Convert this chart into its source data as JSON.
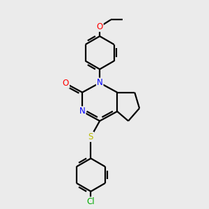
{
  "background_color": "#ebebeb",
  "bond_color": "#000000",
  "bond_width": 1.6,
  "atom_colors": {
    "N": "#0000ff",
    "O": "#ff0000",
    "S": "#bbbb00",
    "Cl": "#00aa00",
    "C": "#000000"
  },
  "font_size_atom": 8.5,
  "fig_width": 3.0,
  "fig_height": 3.0,
  "dpi": 100
}
